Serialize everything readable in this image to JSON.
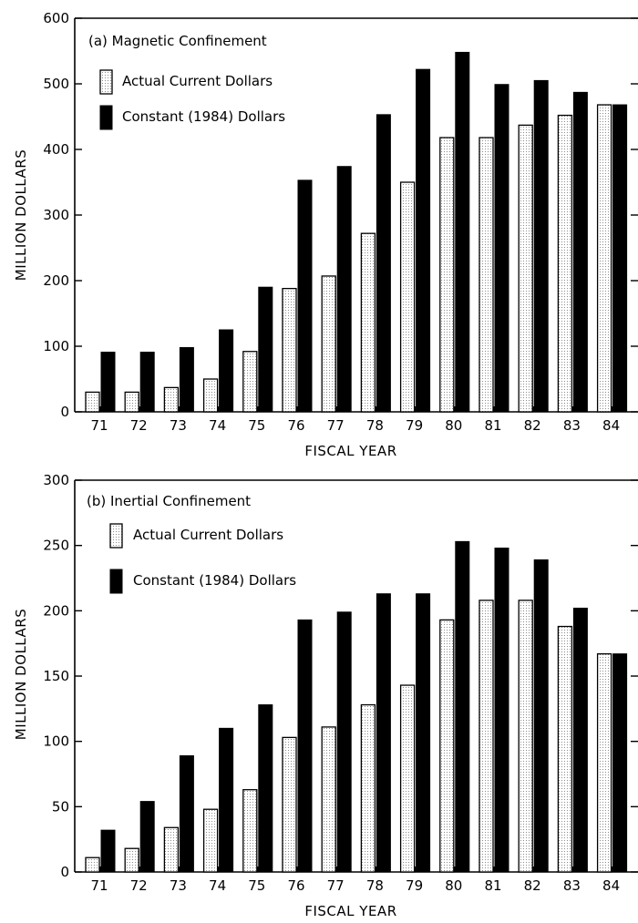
{
  "chart_data": [
    {
      "type": "bar",
      "title": "(a) Magnetic Confinement",
      "xlabel": "FISCAL YEAR",
      "ylabel": "MILLION DOLLARS",
      "ylim": [
        0,
        600
      ],
      "yticks": [
        0,
        100,
        200,
        300,
        400,
        500,
        600
      ],
      "categories": [
        "71",
        "72",
        "73",
        "74",
        "75",
        "76",
        "77",
        "78",
        "79",
        "80",
        "81",
        "82",
        "83",
        "84"
      ],
      "series": [
        {
          "name": "Actual Current Dollars",
          "values": [
            30,
            30,
            37,
            50,
            92,
            188,
            207,
            272,
            350,
            418,
            418,
            437,
            452,
            468
          ]
        },
        {
          "name": "Constant (1984) Dollars",
          "values": [
            91,
            91,
            98,
            125,
            190,
            353,
            374,
            453,
            522,
            548,
            499,
            505,
            487,
            468
          ]
        }
      ],
      "legend": "top-left",
      "grid": false
    },
    {
      "type": "bar",
      "title": "(b) Inertial Confinement",
      "xlabel": "FISCAL YEAR",
      "ylabel": "MILLION DOLLARS",
      "ylim": [
        0,
        300
      ],
      "yticks": [
        0,
        50,
        100,
        150,
        200,
        250,
        300
      ],
      "categories": [
        "71",
        "72",
        "73",
        "74",
        "75",
        "76",
        "77",
        "78",
        "79",
        "80",
        "81",
        "82",
        "83",
        "84"
      ],
      "series": [
        {
          "name": "Actual Current Dollars",
          "values": [
            11,
            18,
            34,
            48,
            63,
            103,
            111,
            128,
            143,
            193,
            208,
            208,
            188,
            167
          ]
        },
        {
          "name": "Constant (1984) Dollars",
          "values": [
            32,
            54,
            89,
            110,
            128,
            193,
            199,
            213,
            213,
            253,
            248,
            239,
            202,
            167
          ]
        }
      ],
      "legend": "top-left",
      "grid": false
    }
  ]
}
